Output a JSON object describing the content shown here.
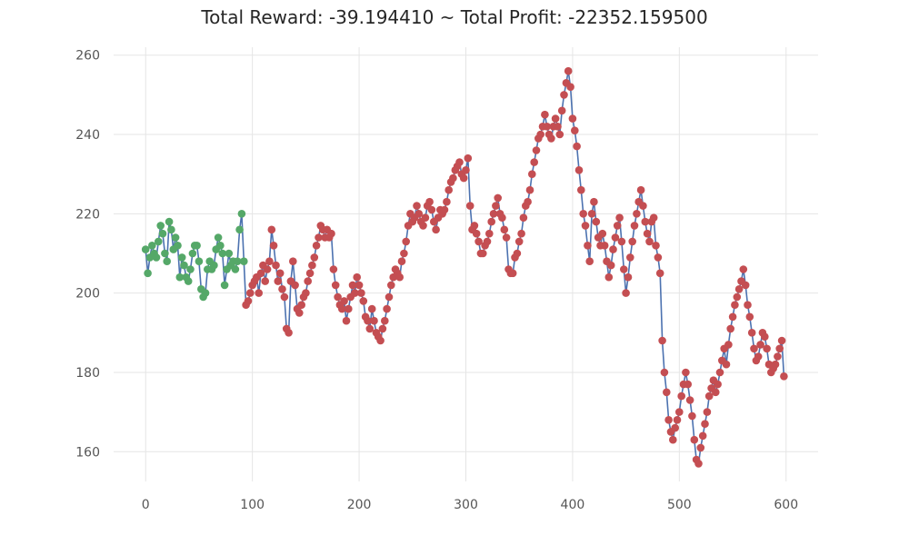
{
  "chart_data": {
    "type": "line",
    "title": "Total Reward: -39.194410 ~ Total Profit: -22352.159500",
    "xlabel": "",
    "ylabel": "",
    "xlim": [
      -30,
      630
    ],
    "ylim": [
      152.5,
      262
    ],
    "x_ticks": [
      0,
      100,
      200,
      300,
      400,
      500,
      600
    ],
    "y_ticks": [
      160,
      180,
      200,
      220,
      240,
      260
    ],
    "grid": true,
    "line_color": "#4c72b0",
    "marker_colors": {
      "long": "#55a868",
      "short": "#c44e52"
    },
    "series": [
      {
        "values": [
          [
            0,
            211
          ],
          [
            2,
            205
          ],
          [
            4,
            209
          ],
          [
            6,
            212
          ],
          [
            8,
            210
          ],
          [
            10,
            209
          ],
          [
            12,
            213
          ],
          [
            14,
            217
          ],
          [
            16,
            215
          ],
          [
            18,
            210
          ],
          [
            20,
            208
          ],
          [
            22,
            218
          ],
          [
            24,
            216
          ],
          [
            26,
            211
          ],
          [
            28,
            214
          ],
          [
            30,
            212
          ],
          [
            32,
            204
          ],
          [
            34,
            209
          ],
          [
            36,
            207
          ],
          [
            38,
            204
          ],
          [
            40,
            203
          ],
          [
            42,
            206
          ],
          [
            44,
            210
          ],
          [
            46,
            212
          ],
          [
            48,
            212
          ],
          [
            50,
            208
          ],
          [
            52,
            201
          ],
          [
            54,
            199
          ],
          [
            56,
            200
          ],
          [
            58,
            206
          ],
          [
            60,
            208
          ],
          [
            62,
            206
          ],
          [
            64,
            207
          ],
          [
            66,
            211
          ],
          [
            68,
            214
          ],
          [
            70,
            212
          ],
          [
            72,
            210
          ],
          [
            74,
            202
          ],
          [
            76,
            206
          ],
          [
            78,
            210
          ],
          [
            80,
            207
          ],
          [
            82,
            208
          ],
          [
            84,
            206
          ],
          [
            86,
            208
          ],
          [
            88,
            216
          ],
          [
            90,
            220
          ],
          [
            92,
            208
          ],
          [
            94,
            197
          ],
          [
            96,
            198
          ],
          [
            98,
            200
          ],
          [
            100,
            202
          ],
          [
            102,
            203
          ],
          [
            104,
            204
          ],
          [
            106,
            200
          ],
          [
            108,
            205
          ],
          [
            110,
            207
          ],
          [
            112,
            203
          ],
          [
            114,
            206
          ],
          [
            116,
            208
          ],
          [
            118,
            216
          ],
          [
            120,
            212
          ],
          [
            122,
            207
          ],
          [
            124,
            203
          ],
          [
            126,
            205
          ],
          [
            128,
            201
          ],
          [
            130,
            199
          ],
          [
            132,
            191
          ],
          [
            134,
            190
          ],
          [
            136,
            203
          ],
          [
            138,
            208
          ],
          [
            140,
            202
          ],
          [
            142,
            196
          ],
          [
            144,
            195
          ],
          [
            146,
            197
          ],
          [
            148,
            199
          ],
          [
            150,
            200
          ],
          [
            152,
            203
          ],
          [
            154,
            205
          ],
          [
            156,
            207
          ],
          [
            158,
            209
          ],
          [
            160,
            212
          ],
          [
            162,
            214
          ],
          [
            164,
            217
          ],
          [
            166,
            216
          ],
          [
            168,
            214
          ],
          [
            170,
            216
          ],
          [
            172,
            214
          ],
          [
            174,
            215
          ],
          [
            176,
            206
          ],
          [
            178,
            202
          ],
          [
            180,
            199
          ],
          [
            182,
            197
          ],
          [
            184,
            196
          ],
          [
            186,
            198
          ],
          [
            188,
            193
          ],
          [
            190,
            196
          ],
          [
            192,
            199
          ],
          [
            194,
            202
          ],
          [
            196,
            200
          ],
          [
            198,
            204
          ],
          [
            200,
            202
          ],
          [
            202,
            200
          ],
          [
            204,
            198
          ],
          [
            206,
            194
          ],
          [
            208,
            193
          ],
          [
            210,
            191
          ],
          [
            212,
            196
          ],
          [
            214,
            193
          ],
          [
            216,
            190
          ],
          [
            218,
            189
          ],
          [
            220,
            188
          ],
          [
            222,
            191
          ],
          [
            224,
            193
          ],
          [
            226,
            196
          ],
          [
            228,
            199
          ],
          [
            230,
            202
          ],
          [
            232,
            204
          ],
          [
            234,
            206
          ],
          [
            236,
            205
          ],
          [
            238,
            204
          ],
          [
            240,
            208
          ],
          [
            242,
            210
          ],
          [
            244,
            213
          ],
          [
            246,
            217
          ],
          [
            248,
            220
          ],
          [
            250,
            218
          ],
          [
            252,
            219
          ],
          [
            254,
            222
          ],
          [
            256,
            220
          ],
          [
            258,
            218
          ],
          [
            260,
            217
          ],
          [
            262,
            219
          ],
          [
            264,
            222
          ],
          [
            266,
            223
          ],
          [
            268,
            221
          ],
          [
            270,
            218
          ],
          [
            272,
            216
          ],
          [
            274,
            219
          ],
          [
            276,
            221
          ],
          [
            278,
            220
          ],
          [
            280,
            221
          ],
          [
            282,
            223
          ],
          [
            284,
            226
          ],
          [
            286,
            228
          ],
          [
            288,
            229
          ],
          [
            290,
            231
          ],
          [
            292,
            232
          ],
          [
            294,
            233
          ],
          [
            296,
            230
          ],
          [
            298,
            229
          ],
          [
            300,
            231
          ],
          [
            302,
            234
          ],
          [
            304,
            222
          ],
          [
            306,
            216
          ],
          [
            308,
            217
          ],
          [
            310,
            215
          ],
          [
            312,
            213
          ],
          [
            314,
            210
          ],
          [
            316,
            210
          ],
          [
            318,
            212
          ],
          [
            320,
            213
          ],
          [
            322,
            215
          ],
          [
            324,
            218
          ],
          [
            326,
            220
          ],
          [
            328,
            222
          ],
          [
            330,
            224
          ],
          [
            332,
            220
          ],
          [
            334,
            219
          ],
          [
            336,
            216
          ],
          [
            338,
            214
          ],
          [
            340,
            206
          ],
          [
            342,
            205
          ],
          [
            344,
            205
          ],
          [
            346,
            209
          ],
          [
            348,
            210
          ],
          [
            350,
            213
          ],
          [
            352,
            215
          ],
          [
            354,
            219
          ],
          [
            356,
            222
          ],
          [
            358,
            223
          ],
          [
            360,
            226
          ],
          [
            362,
            230
          ],
          [
            364,
            233
          ],
          [
            366,
            236
          ],
          [
            368,
            239
          ],
          [
            370,
            240
          ],
          [
            372,
            242
          ],
          [
            374,
            245
          ],
          [
            376,
            242
          ],
          [
            378,
            240
          ],
          [
            380,
            239
          ],
          [
            382,
            242
          ],
          [
            384,
            244
          ],
          [
            386,
            242
          ],
          [
            388,
            240
          ],
          [
            390,
            246
          ],
          [
            392,
            250
          ],
          [
            394,
            253
          ],
          [
            396,
            256
          ],
          [
            398,
            252
          ],
          [
            400,
            244
          ],
          [
            402,
            241
          ],
          [
            404,
            237
          ],
          [
            406,
            231
          ],
          [
            408,
            226
          ],
          [
            410,
            220
          ],
          [
            412,
            217
          ],
          [
            414,
            212
          ],
          [
            416,
            208
          ],
          [
            418,
            220
          ],
          [
            420,
            223
          ],
          [
            422,
            218
          ],
          [
            424,
            214
          ],
          [
            426,
            212
          ],
          [
            428,
            215
          ],
          [
            430,
            212
          ],
          [
            432,
            208
          ],
          [
            434,
            204
          ],
          [
            436,
            207
          ],
          [
            438,
            211
          ],
          [
            440,
            214
          ],
          [
            442,
            217
          ],
          [
            444,
            219
          ],
          [
            446,
            213
          ],
          [
            448,
            206
          ],
          [
            450,
            200
          ],
          [
            452,
            204
          ],
          [
            454,
            209
          ],
          [
            456,
            213
          ],
          [
            458,
            217
          ],
          [
            460,
            220
          ],
          [
            462,
            223
          ],
          [
            464,
            226
          ],
          [
            466,
            222
          ],
          [
            468,
            218
          ],
          [
            470,
            215
          ],
          [
            472,
            213
          ],
          [
            474,
            218
          ],
          [
            476,
            219
          ],
          [
            478,
            212
          ],
          [
            480,
            209
          ],
          [
            482,
            205
          ],
          [
            484,
            188
          ],
          [
            486,
            180
          ],
          [
            488,
            175
          ],
          [
            490,
            168
          ],
          [
            492,
            165
          ],
          [
            494,
            163
          ],
          [
            496,
            166
          ],
          [
            498,
            168
          ],
          [
            500,
            170
          ],
          [
            502,
            174
          ],
          [
            504,
            177
          ],
          [
            506,
            180
          ],
          [
            508,
            177
          ],
          [
            510,
            173
          ],
          [
            512,
            169
          ],
          [
            514,
            163
          ],
          [
            516,
            158
          ],
          [
            518,
            157
          ],
          [
            520,
            161
          ],
          [
            522,
            164
          ],
          [
            524,
            167
          ],
          [
            526,
            170
          ],
          [
            528,
            174
          ],
          [
            530,
            176
          ],
          [
            532,
            178
          ],
          [
            534,
            175
          ],
          [
            536,
            177
          ],
          [
            538,
            180
          ],
          [
            540,
            183
          ],
          [
            542,
            186
          ],
          [
            544,
            182
          ],
          [
            546,
            187
          ],
          [
            548,
            191
          ],
          [
            550,
            194
          ],
          [
            552,
            197
          ],
          [
            554,
            199
          ],
          [
            556,
            201
          ],
          [
            558,
            203
          ],
          [
            560,
            206
          ],
          [
            562,
            202
          ],
          [
            564,
            197
          ],
          [
            566,
            194
          ],
          [
            568,
            190
          ],
          [
            570,
            186
          ],
          [
            572,
            183
          ],
          [
            574,
            184
          ],
          [
            576,
            187
          ],
          [
            578,
            190
          ],
          [
            580,
            189
          ],
          [
            582,
            186
          ],
          [
            584,
            182
          ],
          [
            586,
            180
          ],
          [
            588,
            181
          ],
          [
            590,
            182
          ],
          [
            592,
            184
          ],
          [
            594,
            186
          ],
          [
            596,
            188
          ],
          [
            598,
            179
          ]
        ]
      }
    ],
    "long_until_x": 92
  }
}
